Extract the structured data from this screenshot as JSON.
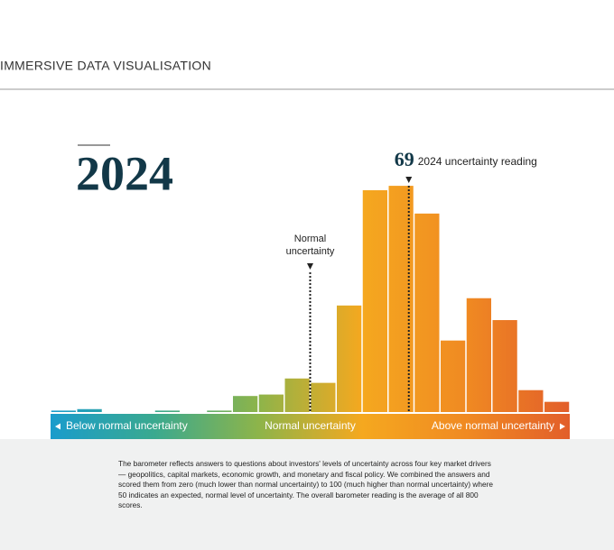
{
  "header": {
    "title": "IMMERSIVE DATA VISUALISATION"
  },
  "chart_data": {
    "type": "histogram",
    "title": "2024",
    "bins": [
      0,
      5,
      10,
      15,
      20,
      25,
      30,
      35,
      40,
      45,
      50,
      55,
      60,
      65,
      70,
      75,
      80,
      85,
      90,
      95,
      100
    ],
    "values": [
      1,
      2,
      0,
      0,
      1,
      0,
      1,
      11,
      12,
      23,
      20,
      73,
      152,
      155,
      136,
      49,
      78,
      63,
      15,
      7
    ],
    "xlim": [
      0,
      100
    ],
    "ylim": [
      0,
      160
    ],
    "colors": [
      "#1a9ccc",
      "#3aa98f",
      "#8db44a",
      "#f5a81f",
      "#f08a22",
      "#e25e2a"
    ],
    "markers": [
      {
        "x": 50,
        "lines": [
          "Normal",
          "uncertainty"
        ]
      },
      {
        "x": 69,
        "value_label": "69",
        "label": "2024 uncertainty reading"
      }
    ],
    "band_labels": [
      "Below normal uncertainty",
      "Normal uncertainty",
      "Above normal uncertainty"
    ]
  },
  "footer": {
    "text": "The barometer reflects answers to questions about investors' levels of uncertainty across four key market drivers — geopolitics, capital markets, economic growth, and monetary and fiscal policy. We combined the answers and scored them from zero (much lower than normal uncertainty) to 100 (much higher than normal uncertainty) where 50 indicates an expected, normal level of uncertainty. The overall barometer reading is the average of all 800 scores."
  }
}
